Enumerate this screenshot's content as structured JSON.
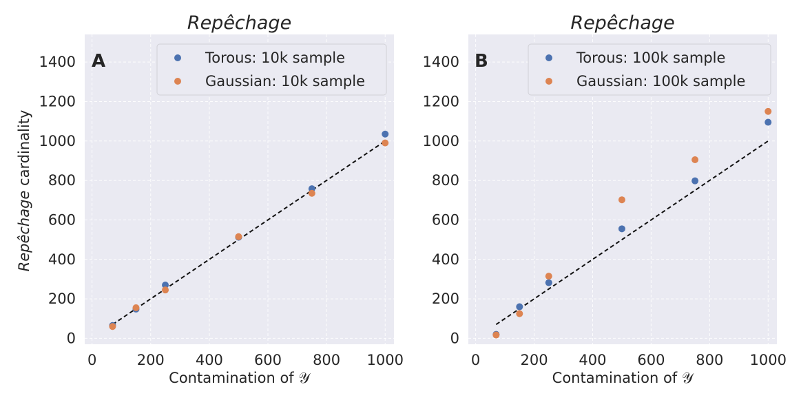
{
  "chart_data": [
    {
      "type": "scatter",
      "panel": "A",
      "title": "Repêchage",
      "xlabel": "Contamination of 𝒴",
      "ylabel_italic": "Repêchage",
      "ylabel_rest": "cardinality",
      "xlim": [
        -25,
        1030
      ],
      "ylim": [
        -30,
        1540
      ],
      "xticks": [
        0,
        200,
        400,
        600,
        800,
        1000
      ],
      "yticks": [
        0,
        200,
        400,
        600,
        800,
        1000,
        1200,
        1400
      ],
      "legend_position": "top-right",
      "reference_line": {
        "x": [
          70,
          1000
        ],
        "y": [
          70,
          1000
        ],
        "style": "dashed"
      },
      "series": [
        {
          "name": "Torous: 10k sample",
          "color": "#4c72b0",
          "x": [
            70,
            150,
            250,
            500,
            750,
            1000
          ],
          "y": [
            65,
            148,
            270,
            512,
            758,
            1035
          ]
        },
        {
          "name": "Gaussian: 10k sample",
          "color": "#dd8452",
          "x": [
            70,
            150,
            250,
            500,
            750,
            1000
          ],
          "y": [
            60,
            155,
            245,
            515,
            735,
            990
          ]
        }
      ]
    },
    {
      "type": "scatter",
      "panel": "B",
      "title": "Repêchage",
      "xlabel": "Contamination of 𝒴",
      "xlim": [
        -25,
        1030
      ],
      "ylim": [
        -30,
        1540
      ],
      "xticks": [
        0,
        200,
        400,
        600,
        800,
        1000
      ],
      "yticks": [
        0,
        200,
        400,
        600,
        800,
        1000,
        1200,
        1400
      ],
      "legend_position": "top-right",
      "reference_line": {
        "x": [
          70,
          1000
        ],
        "y": [
          70,
          1000
        ],
        "style": "dashed"
      },
      "series": [
        {
          "name": "Torous: 100k sample",
          "color": "#4c72b0",
          "x": [
            70,
            150,
            250,
            500,
            750,
            1000
          ],
          "y": [
            20,
            160,
            282,
            555,
            798,
            1095
          ]
        },
        {
          "name": "Gaussian: 100k sample",
          "color": "#dd8452",
          "x": [
            70,
            150,
            250,
            500,
            750,
            1000
          ],
          "y": [
            17,
            125,
            315,
            702,
            905,
            1150
          ]
        }
      ]
    }
  ]
}
